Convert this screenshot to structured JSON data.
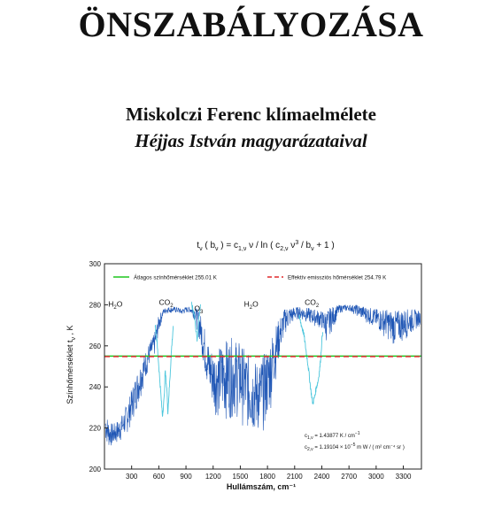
{
  "document": {
    "title": "ÖNSZABÁLYOZÁSA",
    "author_line": "Miskolczi Ferenc klímaelmélete",
    "subtitle_line": "Héjjas István magyarázataival"
  },
  "chart_data": {
    "type": "line",
    "title": "t_ν ( b_ν ) = c_1,ν ν / ln ( c_2,ν ν³ / b_ν + 1 )",
    "title_parts": {
      "t": "t",
      "nu_sub": "ν",
      "open": " ( b",
      "nu_sub2": "ν",
      "eq": " ) = c",
      "c1_sub": "1,ν",
      "mid": "  ν  / ln ( c",
      "c2_sub": "2,ν",
      "nu_cubed": " ν",
      "cube": "3",
      "div": " / b",
      "nu_sub3": "ν",
      "tail": " + 1 )"
    },
    "xlabel": "Hullámszám, cm⁻¹",
    "ylabel": "Színhőmérséklet t_ν , K",
    "ylabel_parts": {
      "main": "Színhőmérséklet t",
      "sub": "ν",
      "tail": " , K"
    },
    "xlim": [
      0,
      3500
    ],
    "ylim": [
      200,
      300
    ],
    "xticks": [
      300,
      600,
      900,
      1200,
      1500,
      1800,
      2100,
      2400,
      2700,
      3000,
      3300
    ],
    "yticks": [
      200,
      220,
      240,
      260,
      280,
      300
    ],
    "grid": false,
    "legend_position": "top",
    "colors": {
      "spectrum": "#1f56b5",
      "co2_bands": "#4cc6dc",
      "average": "#1ec51e",
      "effective": "#e0282c"
    },
    "legend": [
      {
        "label": "Átlagos színhőmérséklet 255.01 K",
        "color": "#1ec51e",
        "style": "solid"
      },
      {
        "label": "Effektív emissziós hőmérséklet  254.79 K",
        "color": "#e0282c",
        "style": "dashed"
      }
    ],
    "hlines": [
      {
        "name": "Átlagos színhőmérséklet",
        "y": 255.01,
        "color": "#1ec51e",
        "style": "solid"
      },
      {
        "name": "Effektív emissziós hőmérséklet",
        "y": 254.79,
        "color": "#e0282c",
        "style": "dashed"
      }
    ],
    "annotations": [
      {
        "base": "H",
        "sub": "2",
        "tail": "O",
        "x": 120,
        "y": 279
      },
      {
        "base": "CO",
        "sub": "2",
        "tail": "",
        "x": 680,
        "y": 280
      },
      {
        "base": "O",
        "sub": "3",
        "tail": "",
        "x": 1040,
        "y": 277
      },
      {
        "base": "H",
        "sub": "2",
        "tail": "O",
        "x": 1620,
        "y": 279
      },
      {
        "base": "CO",
        "sub": "2",
        "tail": "",
        "x": 2290,
        "y": 280
      }
    ],
    "constants_text": [
      {
        "c": "c",
        "sub": "1,ν",
        "rest": " = 1.43877 K / cm",
        "sup": "−1",
        "after": ""
      },
      {
        "c": "c",
        "sub": "2,ν",
        "rest": " = 1.19104 × 10",
        "sup": "−5",
        "after": " m W / ( m² cm⁻⁴ sr )"
      }
    ],
    "series": [
      {
        "color": "#1f56b5",
        "x": [
          10,
          50,
          100,
          150,
          200,
          250,
          300,
          350,
          400,
          450,
          500,
          550,
          600,
          650,
          700,
          750,
          800,
          850,
          900,
          950,
          1000,
          1050,
          1100,
          1150,
          1200,
          1250,
          1300,
          1350,
          1400,
          1450,
          1500,
          1550,
          1600,
          1650,
          1700,
          1750,
          1800,
          1850,
          1900,
          1950,
          2000,
          2050,
          2100,
          2150,
          2200,
          2300,
          2400,
          2450,
          2500,
          2600,
          2700,
          2800,
          2900,
          3000,
          3100,
          3200,
          3300,
          3400,
          3490
        ],
        "low": [
          213,
          210,
          211,
          212,
          214,
          217,
          222,
          228,
          235,
          243,
          250,
          254,
          266,
          275,
          276,
          276,
          276,
          275,
          276,
          276,
          272,
          262,
          248,
          235,
          228,
          225,
          224,
          224,
          224,
          225,
          222,
          220,
          217,
          216,
          216,
          218,
          222,
          232,
          246,
          258,
          266,
          269,
          272,
          273,
          272,
          270,
          268,
          262,
          266,
          276,
          277,
          274,
          271,
          268,
          264,
          260,
          262,
          266,
          270
        ],
        "high": [
          228,
          223,
          222,
          224,
          227,
          232,
          239,
          246,
          252,
          257,
          262,
          266,
          275,
          278,
          279,
          279,
          279,
          278,
          279,
          279,
          279,
          277,
          270,
          262,
          258,
          258,
          262,
          263,
          264,
          263,
          262,
          258,
          255,
          253,
          252,
          255,
          260,
          266,
          271,
          275,
          279,
          279,
          279,
          279,
          279,
          278,
          277,
          277,
          279,
          280,
          280,
          280,
          279,
          278,
          278,
          277,
          278,
          278,
          277
        ]
      }
    ],
    "bands": [
      {
        "color": "#4cc6dc",
        "points": [
          [
            560,
            270
          ],
          [
            580,
            262
          ],
          [
            600,
            250
          ],
          [
            620,
            238
          ],
          [
            640,
            226
          ],
          [
            660,
            235
          ],
          [
            670,
            248
          ],
          [
            690,
            238
          ],
          [
            700,
            228
          ],
          [
            720,
            242
          ],
          [
            740,
            258
          ],
          [
            760,
            270
          ]
        ]
      },
      {
        "color": "#4cc6dc",
        "points": [
          [
            960,
            280
          ],
          [
            990,
            276
          ],
          [
            1010,
            268
          ],
          [
            1025,
            262
          ],
          [
            1040,
            273
          ],
          [
            1060,
            280
          ]
        ]
      },
      {
        "color": "#4cc6dc",
        "points": [
          [
            2150,
            274
          ],
          [
            2200,
            266
          ],
          [
            2250,
            250
          ],
          [
            2280,
            238
          ],
          [
            2300,
            232
          ],
          [
            2320,
            235
          ],
          [
            2340,
            240
          ],
          [
            2360,
            243
          ],
          [
            2380,
            250
          ],
          [
            2410,
            268
          ]
        ]
      }
    ]
  }
}
